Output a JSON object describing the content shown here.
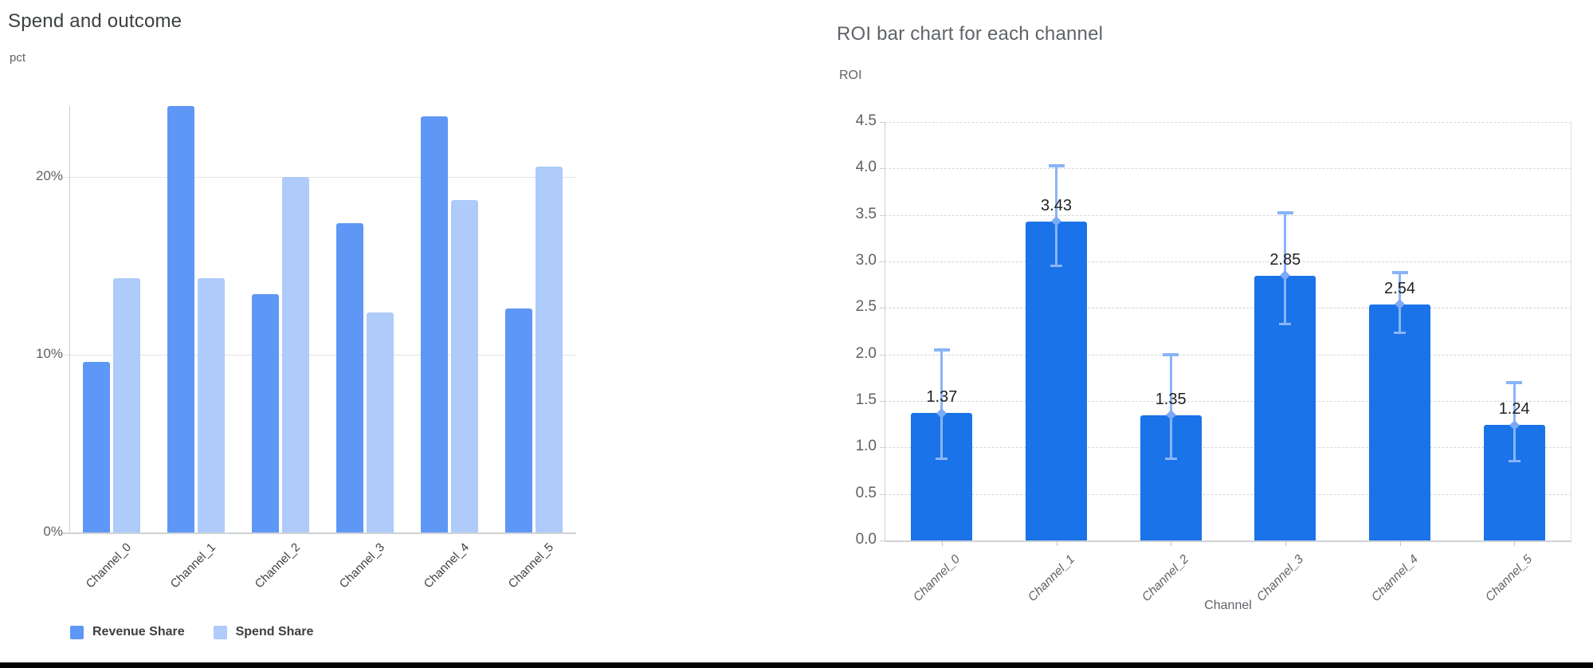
{
  "chart_data": [
    {
      "type": "bar",
      "title": "Spend and outcome",
      "ylabel": "pct",
      "xlabel": "",
      "categories": [
        "Channel_0",
        "Channel_1",
        "Channel_2",
        "Channel_3",
        "Channel_4",
        "Channel_5"
      ],
      "series": [
        {
          "name": "Revenue Share",
          "color": "#5e97f6",
          "values": [
            9.6,
            24.0,
            13.4,
            17.4,
            23.4,
            12.6
          ]
        },
        {
          "name": "Spend Share",
          "color": "#aecbfa",
          "values": [
            14.3,
            14.3,
            20.0,
            12.4,
            18.7,
            20.6
          ]
        }
      ],
      "ylim": [
        0,
        24
      ],
      "y_ticks": [
        {
          "v": 0,
          "label": "0%"
        },
        {
          "v": 10,
          "label": "10%"
        },
        {
          "v": 20,
          "label": "20%"
        }
      ],
      "grid": "solid",
      "legend_position": "bottom"
    },
    {
      "type": "bar",
      "title": "ROI bar chart for each channel",
      "ylabel": "ROI",
      "xlabel": "Channel",
      "categories": [
        "Channel_0",
        "Channel_1",
        "Channel_2",
        "Channel_3",
        "Channel_4",
        "Channel_5"
      ],
      "series": [
        {
          "name": "ROI",
          "color": "#1a73e8",
          "values": [
            1.37,
            3.43,
            1.35,
            2.85,
            2.54,
            1.24
          ]
        }
      ],
      "data_labels": [
        "1.37",
        "3.43",
        "1.35",
        "2.85",
        "2.54",
        "1.24"
      ],
      "error_bars": {
        "color": "#8ab4f8",
        "marker_color": "#7baaf7",
        "low": [
          0.88,
          2.95,
          0.88,
          2.33,
          2.23,
          0.85
        ],
        "high": [
          2.05,
          4.03,
          2.0,
          3.52,
          2.88,
          1.7
        ]
      },
      "ylim": [
        0,
        4.5
      ],
      "y_ticks": [
        {
          "v": 0.0,
          "label": "0.0"
        },
        {
          "v": 0.5,
          "label": "0.5"
        },
        {
          "v": 1.0,
          "label": "1.0"
        },
        {
          "v": 1.5,
          "label": "1.5"
        },
        {
          "v": 2.0,
          "label": "2.0"
        },
        {
          "v": 2.5,
          "label": "2.5"
        },
        {
          "v": 3.0,
          "label": "3.0"
        },
        {
          "v": 3.5,
          "label": "3.5"
        },
        {
          "v": 4.0,
          "label": "4.0"
        },
        {
          "v": 4.5,
          "label": "4.5"
        }
      ],
      "grid": "dashed",
      "legend_position": "none"
    }
  ],
  "colors": {
    "background": "#ffffff",
    "bottom_divider": "#050505",
    "left_title": "#3c4043",
    "right_title": "#5f6368",
    "grid_solid": "#e3e3e3",
    "grid_dashed": "#d6d6d6",
    "error_bar": "#8ab4f8"
  }
}
